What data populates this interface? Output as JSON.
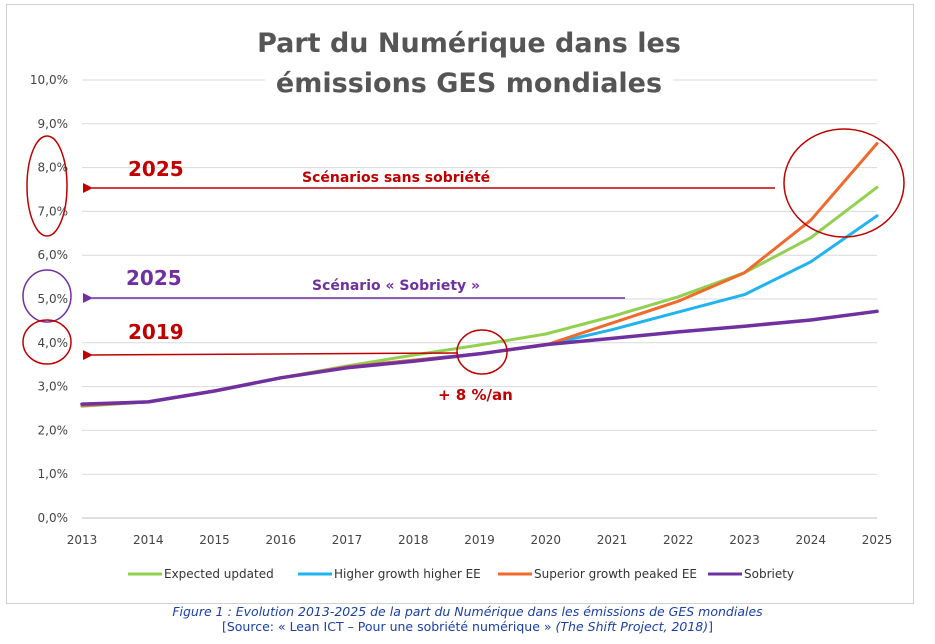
{
  "chart_data": {
    "type": "line",
    "title": [
      "Part du Numérique dans les",
      "émissions GES mondiales"
    ],
    "categories": [
      "2013",
      "2014",
      "2015",
      "2016",
      "2017",
      "2018",
      "2019",
      "2020",
      "2021",
      "2022",
      "2023",
      "2024",
      "2025"
    ],
    "yticks": [
      "0,0%",
      "1,0%",
      "2,0%",
      "3,0%",
      "4,0%",
      "5,0%",
      "6,0%",
      "7,0%",
      "8,0%",
      "9,0%",
      "10,0%"
    ],
    "ylim": [
      0,
      10
    ],
    "series": [
      {
        "name": "Expected updated",
        "color": "#92d050",
        "values": [
          2.55,
          2.65,
          2.9,
          3.2,
          3.47,
          3.72,
          3.95,
          4.2,
          4.6,
          5.05,
          5.6,
          6.4,
          7.55
        ]
      },
      {
        "name": "Higher growth higher EE",
        "color": "#1fb3f0",
        "values": [
          2.57,
          2.65,
          2.9,
          3.2,
          3.45,
          3.6,
          3.75,
          3.95,
          4.3,
          4.7,
          5.1,
          5.85,
          6.9
        ]
      },
      {
        "name": "Superior growth peaked EE",
        "color": "#ef6a2c",
        "values": [
          2.57,
          2.65,
          2.9,
          3.2,
          3.45,
          3.6,
          3.75,
          3.95,
          4.45,
          4.95,
          5.6,
          6.8,
          8.55
        ]
      },
      {
        "name": "Sobriety",
        "color": "#7030a0",
        "values": [
          2.6,
          2.65,
          2.9,
          3.2,
          3.43,
          3.58,
          3.75,
          3.96,
          4.1,
          4.25,
          4.38,
          4.52,
          4.72
        ]
      }
    ],
    "annotations": {
      "label_2025_a": "2025",
      "label_2025_b": "2025",
      "label_2019": "2019",
      "scenarios_sans": "Scénarios sans sobriété",
      "scenario_sobriety": "Scénario « Sobriety »",
      "growth_rate": "+ 8 %/an"
    },
    "colors": {
      "red": "#c00000",
      "purple": "#7030a0"
    }
  },
  "caption": {
    "line1": "Figure 1 : Evolution 2013-2025 de la part du Numérique dans les émissions de GES mondiales",
    "line2_prefix": "[Source: « Lean ICT – Pour une sobriété numérique » ",
    "line2_italic": "(The Shift Project, 2018)",
    "line2_suffix": "]"
  }
}
